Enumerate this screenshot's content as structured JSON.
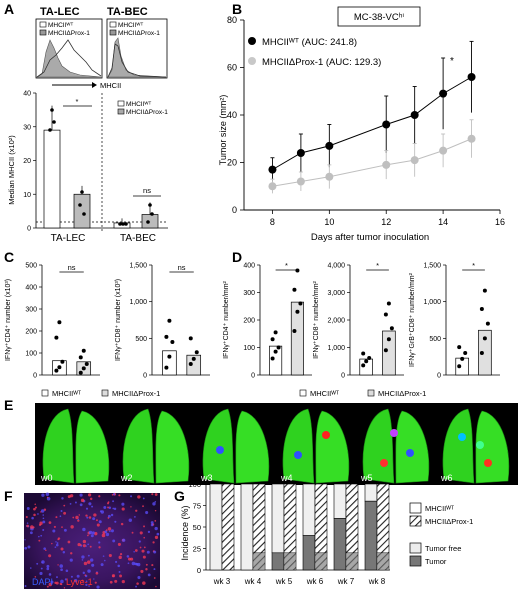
{
  "panel_letters": [
    "A",
    "B",
    "C",
    "D",
    "E",
    "F",
    "G"
  ],
  "panel_a": {
    "titles": [
      "TA-LEC",
      "TA-BEC"
    ],
    "legend": [
      "MHCIIᵂᵀ",
      "MHCIIΔProx-1"
    ],
    "flow_xlabel": "MHCII",
    "ylabel": "Median MHCII (x10²)",
    "yticks": [
      "0",
      "10",
      "20",
      "30",
      "40"
    ],
    "xcats": [
      "TA-LEC",
      "TA-BEC"
    ],
    "sig": [
      "*",
      "ns"
    ]
  },
  "panel_b": {
    "boxed_title": "MC-38-VCʰⁱ",
    "legend": [
      "MHCIIᵂᵀ (AUC: 241.8)",
      "MHCIIΔProx-1 (AUC: 129.3)"
    ],
    "xlabel": "Days after tumor inoculation",
    "ylabel": "Tumor size (mm²)",
    "xticks": [
      "8",
      "10",
      "12",
      "14",
      "16"
    ],
    "yticks": [
      "0",
      "20",
      "40",
      "60",
      "80"
    ],
    "sig": "*"
  },
  "panel_c": {
    "ylabels": [
      "IFNγ⁺CD4⁺ number (x10³)",
      "IFNγ⁺CD8⁺ number (x10³)"
    ],
    "yticks_1": [
      "0",
      "100",
      "200",
      "300",
      "400",
      "500"
    ],
    "yticks_2": [
      "0",
      "500",
      "1,000",
      "1,500"
    ],
    "sig": [
      "ns",
      "ns"
    ],
    "legend": [
      "MHCIIᵂᵀ",
      "MHCIIΔProx-1"
    ]
  },
  "panel_d": {
    "ylabels": [
      "IFNγ⁺CD4⁺ number/mm²",
      "IFNγ⁺CD8⁺ number/mm²",
      "IFNγ⁺GrB⁺CD8⁺ number/mm²"
    ],
    "yticks_1": [
      "0",
      "100",
      "200",
      "300",
      "400"
    ],
    "yticks_2": [
      "0",
      "1,000",
      "2,000",
      "3,000",
      "4,000"
    ],
    "yticks_3": [
      "0",
      "500",
      "1,000",
      "1,500"
    ],
    "sig": [
      "*",
      "*",
      "*"
    ],
    "legend": [
      "MHCIIᵂᵀ",
      "MHCIIΔProx-1"
    ]
  },
  "panel_e": {
    "labels": [
      "w0",
      "w2",
      "w3",
      "w4",
      "w5",
      "w6"
    ]
  },
  "panel_f": {
    "labels": [
      "DAPI",
      "Lyve-1"
    ]
  },
  "panel_g": {
    "ylabel": "Incidence (%)",
    "yticks": [
      "0",
      "25",
      "50",
      "75",
      "100"
    ],
    "weeks": [
      "wk 3",
      "wk 4",
      "wk 5",
      "wk 6",
      "wk 7",
      "wk 8"
    ],
    "legend": [
      "MHCIIᵂᵀ",
      "MHCIIΔProx-1",
      "Tumor free",
      "Tumor"
    ]
  },
  "chart_data": [
    {
      "type": "bar",
      "id": "A",
      "categories": [
        "TA-LEC",
        "TA-BEC"
      ],
      "series": [
        {
          "name": "MHCIIᵂᵀ",
          "values": [
            29,
            1.5
          ]
        },
        {
          "name": "MHCIIΔProx-1",
          "values": [
            10,
            4
          ]
        }
      ],
      "ylabel": "Median MHCII (x10²)",
      "ylim": [
        0,
        40
      ]
    },
    {
      "type": "line",
      "id": "B",
      "x": [
        8,
        9,
        10,
        12,
        13,
        14,
        15
      ],
      "series": [
        {
          "name": "MHCIIᵂᵀ (AUC: 241.8)",
          "values": [
            17,
            24,
            27,
            36,
            40,
            49,
            56
          ],
          "errors": [
            5,
            8,
            9,
            12,
            12,
            15,
            15
          ]
        },
        {
          "name": "MHCIIΔProx-1 (AUC: 129.3)",
          "values": [
            10,
            12,
            14,
            19,
            21,
            25,
            30
          ],
          "errors": [
            3,
            4,
            5,
            6,
            7,
            7,
            8
          ]
        }
      ],
      "xlabel": "Days after tumor inoculation",
      "ylabel": "Tumor size (mm²)",
      "xlim": [
        7,
        16
      ],
      "ylim": [
        0,
        80
      ]
    },
    {
      "type": "bar",
      "id": "C-CD4",
      "categories": [
        "MHCIIᵂᵀ",
        "MHCIIΔProx-1"
      ],
      "values": [
        65,
        60
      ],
      "ylim": [
        0,
        500
      ]
    },
    {
      "type": "bar",
      "id": "C-CD8",
      "categories": [
        "MHCIIᵂᵀ",
        "MHCIIΔProx-1"
      ],
      "values": [
        330,
        270
      ],
      "ylim": [
        0,
        1500
      ]
    },
    {
      "type": "bar",
      "id": "D-CD4",
      "categories": [
        "MHCIIᵂᵀ",
        "MHCIIΔProx-1"
      ],
      "values": [
        105,
        265
      ],
      "ylim": [
        0,
        400
      ]
    },
    {
      "type": "bar",
      "id": "D-CD8",
      "categories": [
        "MHCIIᵂᵀ",
        "MHCIIΔProx-1"
      ],
      "values": [
        580,
        1600
      ],
      "ylim": [
        0,
        4000
      ]
    },
    {
      "type": "bar",
      "id": "D-GrB",
      "categories": [
        "MHCIIᵂᵀ",
        "MHCIIΔProx-1"
      ],
      "values": [
        230,
        610
      ],
      "ylim": [
        0,
        1500
      ]
    },
    {
      "type": "bar",
      "id": "G",
      "categories": [
        "wk 3",
        "wk 4",
        "wk 5",
        "wk 6",
        "wk 7",
        "wk 8"
      ],
      "series": [
        {
          "name": "MHCIIᵂᵀ Tumor",
          "values": [
            0,
            0,
            20,
            40,
            60,
            80
          ]
        },
        {
          "name": "MHCIIΔProx-1 Tumor",
          "values": [
            0,
            20,
            20,
            20,
            20,
            20
          ]
        }
      ],
      "ylabel": "Incidence (%)",
      "ylim": [
        0,
        100
      ]
    }
  ]
}
